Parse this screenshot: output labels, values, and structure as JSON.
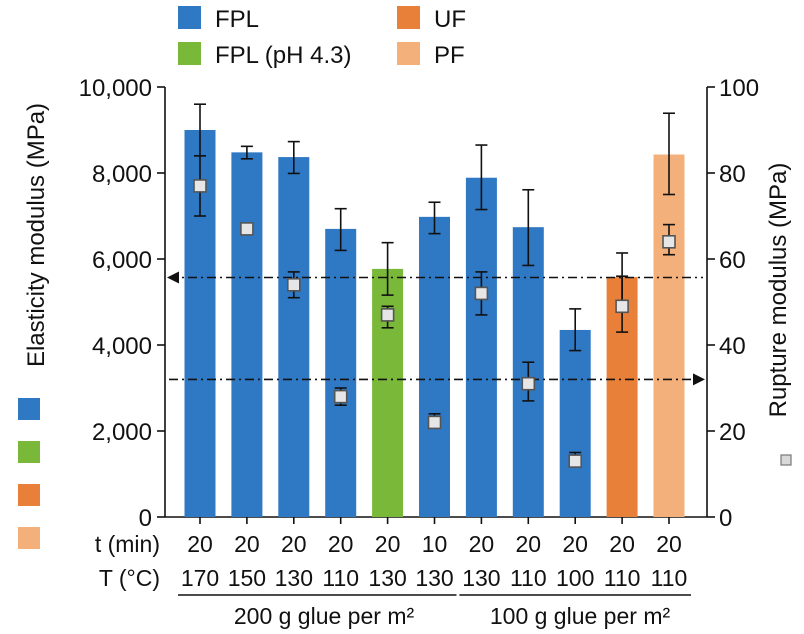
{
  "chart_data": {
    "type": "bar",
    "legend": {
      "items": [
        {
          "label": "FPL",
          "color": "#2f78c4"
        },
        {
          "label": "FPL (pH 4.3)",
          "color": "#7ab83a"
        },
        {
          "label": "UF",
          "color": "#e8803a"
        },
        {
          "label": "PF",
          "color": "#f4b07a"
        }
      ],
      "placement": "top"
    },
    "left_axis": {
      "label": "Elasticity modulus (MPa)",
      "range": [
        0,
        10000
      ],
      "ticks": [
        "0",
        "2,000",
        "4,000",
        "6,000",
        "8,000",
        "10,000"
      ],
      "tick_values": [
        0,
        2000,
        4000,
        6000,
        8000,
        10000
      ]
    },
    "right_axis": {
      "label": "Rupture modulus (MPa)",
      "range": [
        0,
        100
      ],
      "ticks": [
        "0",
        "20",
        "40",
        "60",
        "80",
        "100"
      ],
      "tick_values": [
        0,
        20,
        40,
        60,
        80,
        100
      ]
    },
    "row_labels": {
      "t": "t (min)",
      "T": "T (°C)"
    },
    "t_values": [
      "20",
      "20",
      "20",
      "20",
      "20",
      "10",
      "20",
      "20",
      "20",
      "20",
      "20"
    ],
    "T_values": [
      "170",
      "150",
      "130",
      "110",
      "130",
      "130",
      "130",
      "110",
      "100",
      "110",
      "110"
    ],
    "groups": [
      {
        "label": "200 g glue per m²"
      },
      {
        "label": "100 g glue per m²"
      }
    ],
    "bars": [
      {
        "type": "FPL",
        "elasticity": 9000,
        "elasticity_err": [
          8400,
          9600
        ],
        "rupture": 77,
        "rupture_err": [
          70,
          84
        ]
      },
      {
        "type": "FPL",
        "elasticity": 8480,
        "elasticity_err": [
          8330,
          8620
        ],
        "rupture": 67,
        "rupture_err": [
          66,
          68
        ]
      },
      {
        "type": "FPL",
        "elasticity": 8370,
        "elasticity_err": [
          7990,
          8730
        ],
        "rupture": 54,
        "rupture_err": [
          51,
          57
        ]
      },
      {
        "type": "FPL",
        "elasticity": 6700,
        "elasticity_err": [
          6200,
          7170
        ],
        "rupture": 28,
        "rupture_err": [
          26,
          30
        ]
      },
      {
        "type": "FPL (pH 4.3)",
        "elasticity": 5770,
        "elasticity_err": [
          5160,
          6380
        ],
        "rupture": 47,
        "rupture_err": [
          44,
          49
        ]
      },
      {
        "type": "FPL",
        "elasticity": 6980,
        "elasticity_err": [
          6590,
          7320
        ],
        "rupture": 22,
        "rupture_err": [
          21,
          24
        ]
      },
      {
        "type": "FPL",
        "elasticity": 7890,
        "elasticity_err": [
          7150,
          8650
        ],
        "rupture": 52,
        "rupture_err": [
          47,
          57
        ]
      },
      {
        "type": "FPL",
        "elasticity": 6740,
        "elasticity_err": [
          5850,
          7610
        ],
        "rupture": 31,
        "rupture_err": [
          27,
          36
        ]
      },
      {
        "type": "FPL",
        "elasticity": 4350,
        "elasticity_err": [
          3870,
          4840
        ],
        "rupture": 13,
        "rupture_err": [
          12,
          15
        ]
      },
      {
        "type": "UF",
        "elasticity": 5580,
        "elasticity_err": [
          5020,
          6140
        ],
        "rupture": 49,
        "rupture_err": [
          43,
          56
        ]
      },
      {
        "type": "PF",
        "elasticity": 8430,
        "elasticity_err": [
          7500,
          9390
        ],
        "rupture": 64,
        "rupture_err": [
          61,
          68
        ]
      }
    ],
    "reference_lines": [
      {
        "axis": "left",
        "value": 5570,
        "direction": "left"
      },
      {
        "axis": "right",
        "value": 32,
        "direction": "right"
      }
    ],
    "side_swatches": [
      "#2f78c4",
      "#7ab83a",
      "#e8803a",
      "#f4b07a"
    ],
    "right_axis_marker_color": "#d9d9d9"
  }
}
